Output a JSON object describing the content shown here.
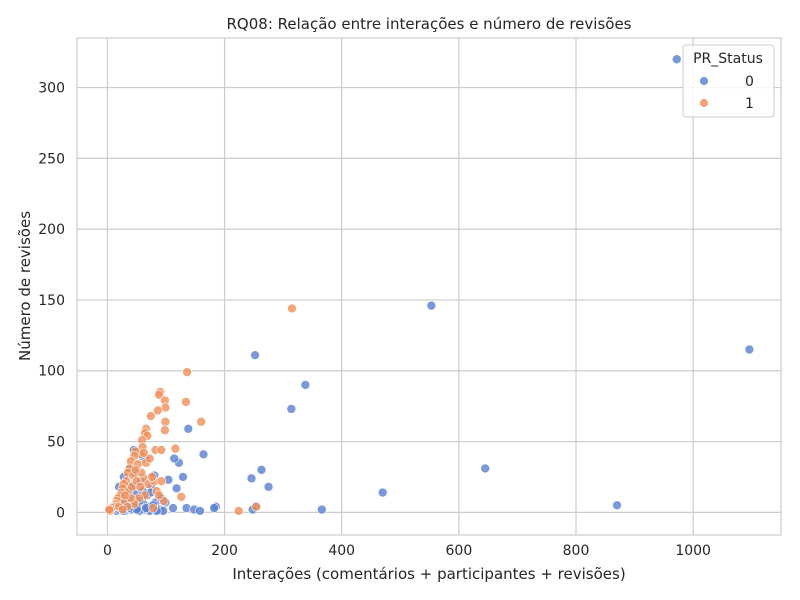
{
  "chart_data": {
    "type": "scatter",
    "title": "RQ08: Relação entre interações e número de revisões",
    "xlabel": "Interações (comentários + participantes + revisões)",
    "ylabel": "Número de revisões",
    "xlim": [
      -52,
      1150
    ],
    "ylim": [
      -16,
      335
    ],
    "xticks": [
      0,
      200,
      400,
      600,
      800,
      1000
    ],
    "yticks": [
      0,
      50,
      100,
      150,
      200,
      250,
      300
    ],
    "grid": true,
    "legend": {
      "title": "PR_Status",
      "placement": "top-right",
      "entries": [
        "0",
        "1"
      ]
    },
    "series": [
      {
        "name": "0",
        "color": "#5a7fd0",
        "points": [
          [
            972,
            320
          ],
          [
            553,
            146
          ],
          [
            1096,
            115
          ],
          [
            252,
            111
          ],
          [
            338,
            90
          ],
          [
            314,
            73
          ],
          [
            645,
            31
          ],
          [
            870,
            5
          ],
          [
            470,
            14
          ],
          [
            366,
            2
          ],
          [
            263,
            30
          ],
          [
            275,
            18
          ],
          [
            246,
            24
          ],
          [
            253,
            4
          ],
          [
            248,
            2
          ],
          [
            185,
            4
          ],
          [
            182,
            3
          ],
          [
            164,
            41
          ],
          [
            138,
            59
          ],
          [
            122,
            35
          ],
          [
            129,
            25
          ],
          [
            114,
            38
          ],
          [
            104,
            23
          ],
          [
            118,
            17
          ],
          [
            112,
            3
          ],
          [
            135,
            3
          ],
          [
            148,
            2
          ],
          [
            158,
            1
          ],
          [
            99,
            7
          ],
          [
            90,
            2
          ],
          [
            80,
            26
          ],
          [
            82,
            7
          ],
          [
            75,
            18
          ],
          [
            70,
            4
          ],
          [
            68,
            12
          ],
          [
            65,
            38
          ],
          [
            61,
            6
          ],
          [
            60,
            15
          ],
          [
            57,
            22
          ],
          [
            55,
            8
          ],
          [
            52,
            3
          ],
          [
            48,
            28
          ],
          [
            46,
            13
          ],
          [
            44,
            5
          ],
          [
            42,
            19
          ],
          [
            40,
            2
          ],
          [
            38,
            31
          ],
          [
            36,
            9
          ],
          [
            34,
            16
          ],
          [
            32,
            4
          ],
          [
            30,
            1
          ],
          [
            28,
            25
          ],
          [
            26,
            7
          ],
          [
            24,
            12
          ],
          [
            22,
            2
          ],
          [
            20,
            18
          ],
          [
            18,
            5
          ],
          [
            16,
            9
          ],
          [
            14,
            1
          ],
          [
            12,
            4
          ],
          [
            86,
            2
          ],
          [
            95,
            1
          ],
          [
            72,
            1
          ],
          [
            63,
            2
          ],
          [
            54,
            1
          ],
          [
            66,
            3
          ],
          [
            78,
            5
          ],
          [
            58,
            40
          ],
          [
            50,
            2
          ],
          [
            45,
            44
          ],
          [
            37,
            3
          ],
          [
            27,
            1
          ],
          [
            10,
            2
          ],
          [
            74,
            14
          ],
          [
            92,
            10
          ],
          [
            84,
            1
          ]
        ]
      },
      {
        "name": "1",
        "color": "#f08f5a",
        "points": [
          [
            315,
            144
          ],
          [
            136,
            99
          ],
          [
            90,
            85
          ],
          [
            88,
            83
          ],
          [
            98,
            79
          ],
          [
            134,
            78
          ],
          [
            99,
            74
          ],
          [
            86,
            72
          ],
          [
            74,
            68
          ],
          [
            99,
            64
          ],
          [
            160,
            64
          ],
          [
            66,
            59
          ],
          [
            98,
            58
          ],
          [
            64,
            56
          ],
          [
            68,
            54
          ],
          [
            59,
            51
          ],
          [
            60,
            46
          ],
          [
            82,
            44
          ],
          [
            92,
            44
          ],
          [
            116,
            45
          ],
          [
            56,
            41
          ],
          [
            48,
            43
          ],
          [
            46,
            40
          ],
          [
            40,
            36
          ],
          [
            52,
            34
          ],
          [
            38,
            31
          ],
          [
            35,
            28
          ],
          [
            44,
            26
          ],
          [
            62,
            24
          ],
          [
            32,
            22
          ],
          [
            28,
            20
          ],
          [
            26,
            17
          ],
          [
            24,
            14
          ],
          [
            22,
            12
          ],
          [
            18,
            10
          ],
          [
            16,
            8
          ],
          [
            14,
            6
          ],
          [
            12,
            5
          ],
          [
            10,
            4
          ],
          [
            8,
            3
          ],
          [
            6,
            2
          ],
          [
            4,
            1
          ],
          [
            3,
            2
          ],
          [
            20,
            4
          ],
          [
            30,
            8
          ],
          [
            36,
            15
          ],
          [
            42,
            18
          ],
          [
            50,
            22
          ],
          [
            58,
            28
          ],
          [
            66,
            35
          ],
          [
            72,
            38
          ],
          [
            70,
            20
          ],
          [
            80,
            22
          ],
          [
            84,
            15
          ],
          [
            92,
            22
          ],
          [
            96,
            8
          ],
          [
            88,
            12
          ],
          [
            126,
            11
          ],
          [
            224,
            1
          ],
          [
            254,
            4
          ],
          [
            78,
            3
          ],
          [
            64,
            12
          ],
          [
            54,
            10
          ],
          [
            46,
            6
          ],
          [
            34,
            4
          ],
          [
            26,
            2
          ],
          [
            40,
            10
          ],
          [
            56,
            18
          ],
          [
            48,
            30
          ],
          [
            62,
            42
          ],
          [
            76,
            25
          ],
          [
            30,
            12
          ]
        ]
      }
    ]
  }
}
